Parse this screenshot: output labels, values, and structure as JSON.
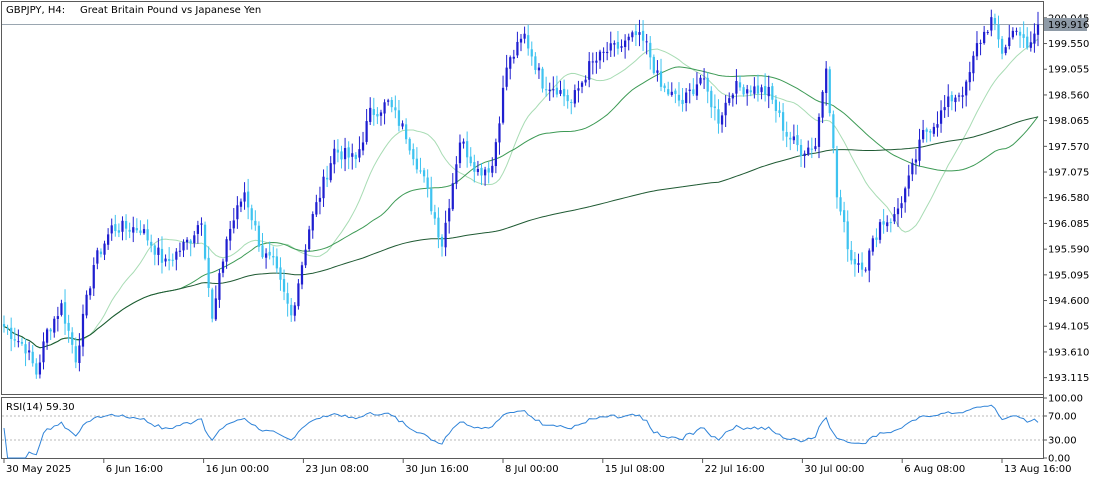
{
  "header": {
    "symbol": "GBPJPY, H4:",
    "description": "Great Britain Pound vs Japanese Yen"
  },
  "price_panel": {
    "price_ticks": [
      "200.045",
      "199.550",
      "199.055",
      "198.560",
      "198.065",
      "197.570",
      "197.075",
      "196.580",
      "196.085",
      "195.590",
      "195.095",
      "194.600",
      "194.105",
      "193.610",
      "193.115"
    ],
    "last_price_label": "199.916"
  },
  "rsi_panel": {
    "label": "RSI(14) 59.30",
    "ticks": [
      "100.00",
      "70.00",
      "30.00",
      "0.00"
    ]
  },
  "time_axis": {
    "labels": [
      "30 May 2025",
      "6 Jun 16:00",
      "16 Jun 00:00",
      "23 Jun 08:00",
      "30 Jun 16:00",
      "8 Jul 00:00",
      "15 Jul 08:00",
      "22 Jul 16:00",
      "30 Jul 00:00",
      "6 Aug 08:00",
      "13 Aug 16:00"
    ]
  },
  "colors": {
    "bull": "#1f1fd0",
    "bear": "#3ec3f0",
    "ma_fast": "#a8dcb4",
    "ma_mid": "#3d9a55",
    "ma_slow": "#1f5a33",
    "rsi_line": "#2f83d8",
    "price_label_bg": "#8e9aa6",
    "grid_level": "#9aa6b0"
  },
  "chart_data": {
    "type": "candlestick",
    "title": "GBPJPY, H4: Great Britain Pound vs Japanese Yen",
    "ylim": [
      192.8,
      200.35
    ],
    "y_ticks": [
      200.045,
      199.55,
      199.055,
      198.56,
      198.065,
      197.57,
      197.075,
      196.58,
      196.085,
      195.59,
      195.095,
      194.6,
      194.105,
      193.61,
      193.115
    ],
    "last_price": 199.916,
    "anchors": [
      [
        0,
        194.1
      ],
      [
        6,
        193.7
      ],
      [
        9,
        193.2
      ],
      [
        12,
        194.0
      ],
      [
        16,
        194.5
      ],
      [
        20,
        193.5
      ],
      [
        25,
        195.3
      ],
      [
        30,
        196.0
      ],
      [
        38,
        196.0
      ],
      [
        45,
        195.3
      ],
      [
        52,
        195.8
      ],
      [
        55,
        196.2
      ],
      [
        58,
        194.2
      ],
      [
        62,
        195.8
      ],
      [
        67,
        196.7
      ],
      [
        72,
        195.5
      ],
      [
        75,
        195.3
      ],
      [
        80,
        194.3
      ],
      [
        85,
        196.0
      ],
      [
        92,
        197.5
      ],
      [
        98,
        197.3
      ],
      [
        102,
        198.2
      ],
      [
        107,
        198.4
      ],
      [
        112,
        197.8
      ],
      [
        117,
        196.9
      ],
      [
        122,
        195.7
      ],
      [
        127,
        197.7
      ],
      [
        132,
        197.1
      ],
      [
        136,
        197.2
      ],
      [
        140,
        199.1
      ],
      [
        145,
        199.7
      ],
      [
        150,
        198.8
      ],
      [
        154,
        198.7
      ],
      [
        158,
        198.4
      ],
      [
        163,
        199.1
      ],
      [
        168,
        199.4
      ],
      [
        172,
        199.5
      ],
      [
        176,
        199.7
      ],
      [
        179,
        199.5
      ],
      [
        183,
        198.7
      ],
      [
        189,
        198.4
      ],
      [
        194,
        198.9
      ],
      [
        199,
        198.1
      ],
      [
        203,
        198.7
      ],
      [
        208,
        198.7
      ],
      [
        213,
        198.6
      ],
      [
        218,
        197.8
      ],
      [
        222,
        197.5
      ],
      [
        226,
        197.6
      ],
      [
        229,
        199.2
      ],
      [
        232,
        196.6
      ],
      [
        236,
        195.4
      ],
      [
        240,
        195.3
      ],
      [
        244,
        196.1
      ],
      [
        248,
        196.2
      ],
      [
        252,
        196.9
      ],
      [
        256,
        197.8
      ],
      [
        260,
        198.1
      ],
      [
        264,
        198.5
      ],
      [
        268,
        198.7
      ],
      [
        271,
        199.5
      ],
      [
        275,
        200.0
      ],
      [
        278,
        199.4
      ],
      [
        282,
        199.9
      ],
      [
        285,
        199.4
      ],
      [
        288,
        199.9
      ]
    ],
    "moving_averages": [
      {
        "period": 20,
        "style": "fast"
      },
      {
        "period": 50,
        "style": "mid"
      },
      {
        "period": 200,
        "style": "slow"
      }
    ],
    "rsi": {
      "period": 14,
      "last": 59.3,
      "ylim": [
        0,
        100
      ],
      "levels": [
        70,
        30
      ]
    }
  }
}
